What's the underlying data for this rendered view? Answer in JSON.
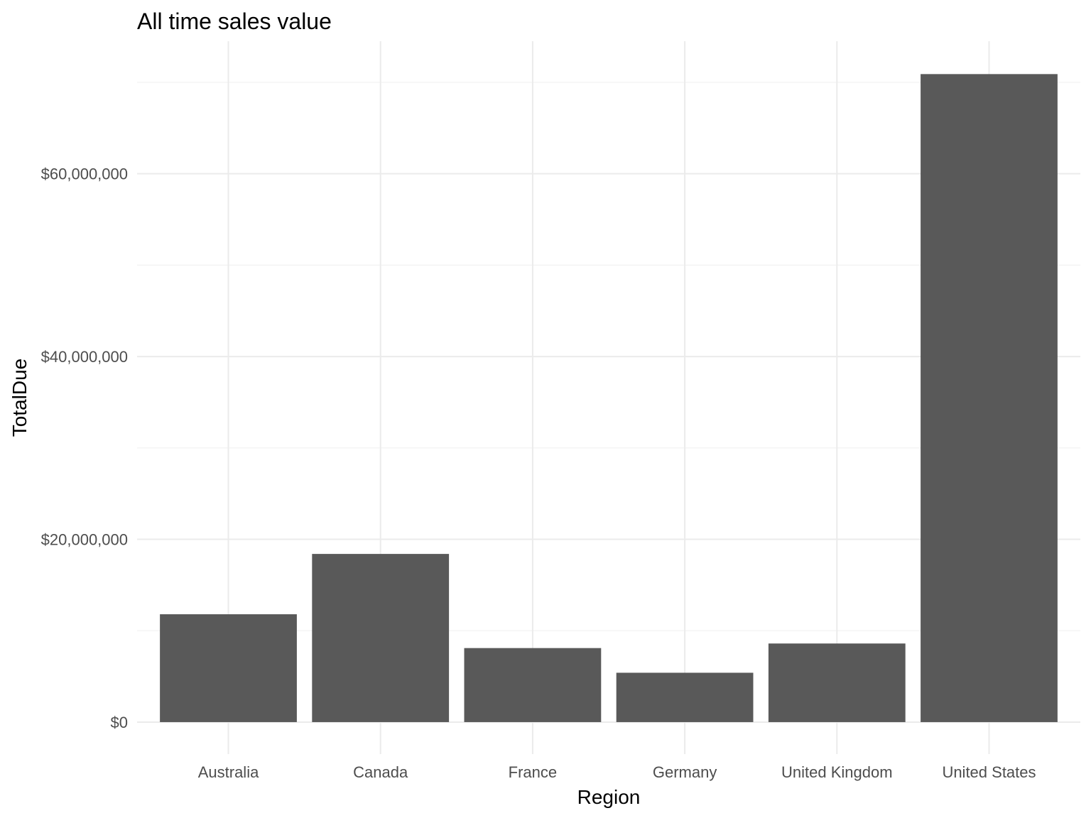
{
  "chart_data": {
    "type": "bar",
    "title": "All time sales value",
    "xlabel": "Region",
    "ylabel": "TotalDue",
    "categories": [
      "Australia",
      "Canada",
      "France",
      "Germany",
      "United Kingdom",
      "United States"
    ],
    "values": [
      11800000,
      18400000,
      8100000,
      5400000,
      8600000,
      70900000
    ],
    "yticks": [
      0,
      20000000,
      40000000,
      60000000
    ],
    "ytick_labels": [
      "$0",
      "$20,000,000",
      "$40,000,000",
      "$60,000,000"
    ],
    "ylim": [
      -3500000,
      74500000
    ],
    "bar_color": "#595959",
    "grid": true,
    "legend": "none"
  }
}
